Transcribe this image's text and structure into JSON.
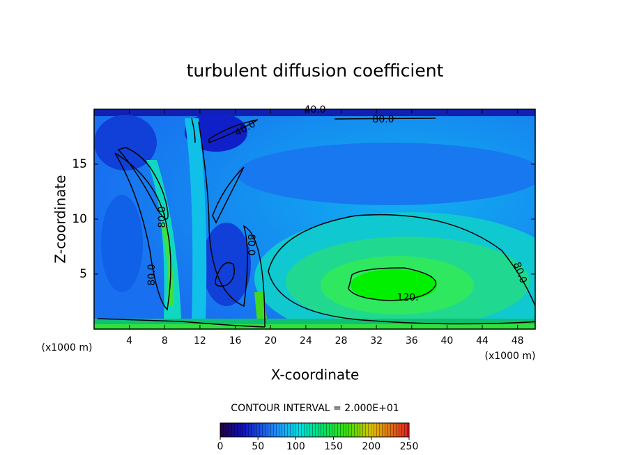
{
  "chart_data": {
    "type": "contour",
    "title": "turbulent diffusion coefficient",
    "x_label": "X-coordinate",
    "y_label": "Z-coordinate",
    "x_unit_labels": [
      "(x1000 m)",
      "(x1000 m)"
    ],
    "xlim": [
      0,
      50
    ],
    "xticks": [
      4,
      8,
      12,
      16,
      20,
      24,
      28,
      32,
      36,
      40,
      44,
      48
    ],
    "ylim": [
      0,
      20
    ],
    "yticks": [
      5,
      10,
      15
    ],
    "levels": [
      40,
      80,
      120
    ],
    "contour_labels": [
      {
        "value": 40,
        "label": "40.0"
      },
      {
        "value": 80,
        "label": "80.0"
      },
      {
        "value": 40,
        "label": "40.0"
      },
      {
        "value": 80,
        "label": "80.0"
      },
      {
        "value": 80,
        "label": "80.0"
      },
      {
        "value": 80,
        "label": "80.0"
      },
      {
        "value": 120,
        "label": "120."
      },
      {
        "value": 80,
        "label": "80.0"
      }
    ],
    "contour_interval_label": "CONTOUR INTERVAL = 2.000E+01",
    "colorbar": {
      "lim": [
        0,
        250
      ],
      "ticks": [
        0,
        50,
        100,
        150,
        200,
        250
      ]
    }
  }
}
